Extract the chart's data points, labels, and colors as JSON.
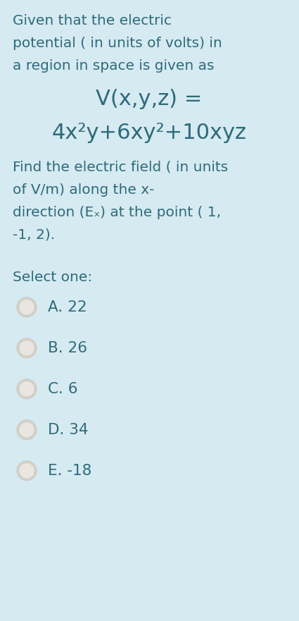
{
  "background_color": "#d6eaf2",
  "text_color": "#2e6b7a",
  "title_lines": [
    "Given that the electric",
    "potential ( in units of volts) in",
    "a region in space is given as"
  ],
  "formula_line1": "V(x,y,z) =",
  "formula_line2": "4x²y+6xy²+10xyz",
  "body_lines": [
    "Find the electric field ( in units",
    "of V/m) along the x-",
    "direction (Eₓ) at the point ( 1,",
    "-1, 2)."
  ],
  "select_label": "Select one:",
  "options": [
    "A. 22",
    "B. 26",
    "C. 6",
    "D. 34",
    "E. -18"
  ],
  "font_size_body": 14.5,
  "font_size_formula": 22,
  "font_family": "DejaVu Sans",
  "radio_outer_color": "#d0cfc8",
  "radio_inner_color": "#e8e6df"
}
